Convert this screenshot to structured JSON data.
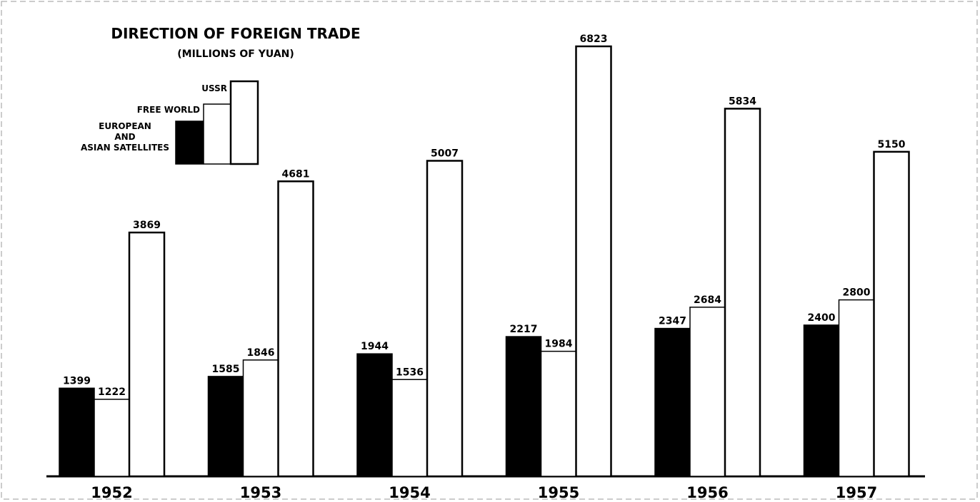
{
  "chart_data": {
    "type": "bar",
    "title": "DIRECTION OF FOREIGN TRADE",
    "subtitle": "(MILLIONS OF YUAN)",
    "categories": [
      "1952",
      "1953",
      "1954",
      "1955",
      "1956",
      "1957"
    ],
    "series": [
      {
        "name": "EUROPEAN\nAND\nASIAN SATELLITES",
        "color": "#000000",
        "values": [
          1399,
          1585,
          1944,
          2217,
          2347,
          2400
        ]
      },
      {
        "name": "FREE WORLD",
        "color": "#ffffff",
        "values": [
          1222,
          1846,
          1536,
          1984,
          2684,
          2800
        ]
      },
      {
        "name": "USSR",
        "color": "#ffffff",
        "values": [
          3869,
          4681,
          5007,
          6823,
          5834,
          5150
        ]
      }
    ]
  }
}
